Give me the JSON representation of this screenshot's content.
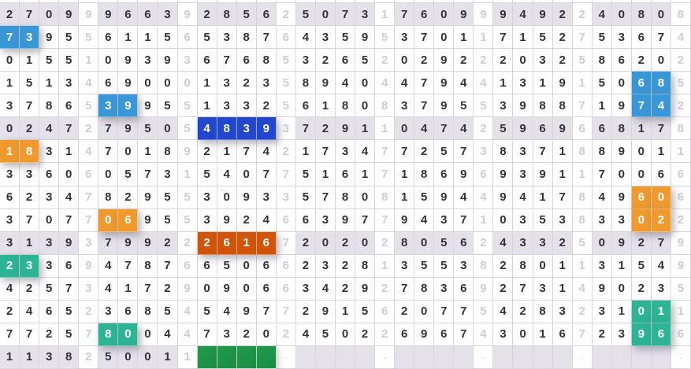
{
  "palette": {
    "light_blue": "#3997d8",
    "dark_blue": "#2247cf",
    "orange": "#f0992c",
    "dark_orange": "#d15408",
    "teal": "#2db495",
    "green": "#229b4c",
    "green_dark": "#188d43",
    "row_shade": "#e4e1e9",
    "digit": "#32323a",
    "muted_digit": "#cfccd6",
    "border": "#d8d6db"
  },
  "grid": {
    "columns": 35,
    "row_count": 16,
    "group_size": 5,
    "shaded_rows": [
      1,
      6,
      11,
      16
    ],
    "dot_char": ".",
    "rows": [
      "27099966392856250731760999492240808",
      "73955611565387643595370117152753674",
      "01551093936768532652029222032586202",
      "15134690001323589404479441319150685",
      "37865399551332561808379553988719742",
      "02472795054839372911047425969668178",
      "18314701892174217347725738371889011",
      "33606057315407751617186969391170066",
      "62347829553093357808159449417849606",
      "37077069553924663977943710353833022",
      "31393799222616720202805624332509279",
      "23369478766506623281355382801131549",
      "42573417290906634292783692731490235",
      "24652368545497729156207754283231011",
      "77257800447320245022696743016723966",
      "1138250011####.    .    .    .    ."
    ],
    "highlights": [
      {
        "row": 2,
        "from": 1,
        "to": 2,
        "color": "light_blue",
        "digits": "73"
      },
      {
        "row": 4,
        "from": 33,
        "to": 34,
        "color": "light_blue",
        "digits": "68"
      },
      {
        "row": 5,
        "from": 6,
        "to": 7,
        "color": "light_blue",
        "digits": "39"
      },
      {
        "row": 5,
        "from": 33,
        "to": 34,
        "color": "light_blue",
        "digits": "74"
      },
      {
        "row": 6,
        "from": 11,
        "to": 14,
        "color": "dark_blue",
        "digits": "4839"
      },
      {
        "row": 7,
        "from": 1,
        "to": 2,
        "color": "orange",
        "digits": "18"
      },
      {
        "row": 9,
        "from": 33,
        "to": 34,
        "color": "orange",
        "digits": "60"
      },
      {
        "row": 10,
        "from": 6,
        "to": 7,
        "color": "orange",
        "digits": "06"
      },
      {
        "row": 10,
        "from": 33,
        "to": 34,
        "color": "orange",
        "digits": "02"
      },
      {
        "row": 11,
        "from": 11,
        "to": 14,
        "color": "dark_orange",
        "digits": "2616"
      },
      {
        "row": 12,
        "from": 1,
        "to": 2,
        "color": "teal",
        "digits": "23"
      },
      {
        "row": 14,
        "from": 33,
        "to": 34,
        "color": "teal",
        "digits": "01"
      },
      {
        "row": 15,
        "from": 6,
        "to": 7,
        "color": "teal",
        "digits": "80"
      },
      {
        "row": 15,
        "from": 33,
        "to": 34,
        "color": "teal",
        "digits": "96"
      },
      {
        "row": 16,
        "from": 11,
        "to": 14,
        "color": "green",
        "digits": ""
      }
    ]
  }
}
